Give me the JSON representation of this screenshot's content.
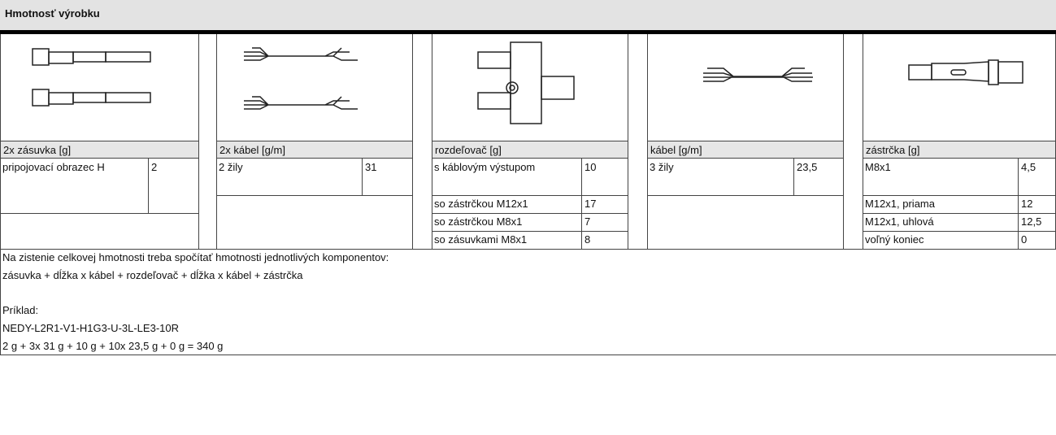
{
  "header": {
    "title": "Hmotnosť výrobku"
  },
  "groups": [
    {
      "heading": "2x zásuvka [g]",
      "rows": [
        [
          "pripojovací obrazec H",
          "2"
        ]
      ]
    },
    {
      "heading": "2x kábel [g/m]",
      "rows": [
        [
          "2 žily",
          "31"
        ]
      ]
    },
    {
      "heading": "rozdeľovač [g]",
      "rows": [
        [
          "s káblovým výstupom",
          "10"
        ],
        [
          "so zástrčkou M12x1",
          "17"
        ],
        [
          "so zástrčkou M8x1",
          "7"
        ],
        [
          "so zásuvkami M8x1",
          "8"
        ]
      ]
    },
    {
      "heading": "kábel [g/m]",
      "rows": [
        [
          "3 žily",
          "23,5"
        ]
      ]
    },
    {
      "heading": "zástrčka [g]",
      "rows": [
        [
          "M8x1",
          "4,5"
        ],
        [
          "M12x1, priama",
          "12"
        ],
        [
          "M12x1, uhlová",
          "12,5"
        ],
        [
          "voľný koniec",
          "0"
        ]
      ]
    }
  ],
  "notes": {
    "intro": [
      "Na zistenie celkovej hmotnosti treba spočítať hmotnosti jednotlivých komponentov:",
      "zásuvka + dĺžka x kábel + rozdeľovač + dĺžka x kábel + zástrčka"
    ],
    "example_label": "Príklad:",
    "example_code": "NEDY-L2R1-V1-H1G3-U-3L-LE3-10R",
    "example_formula": "2 g + 3x 31 g + 10 g + 10x 23,5 g + 0 g = 340 g"
  }
}
